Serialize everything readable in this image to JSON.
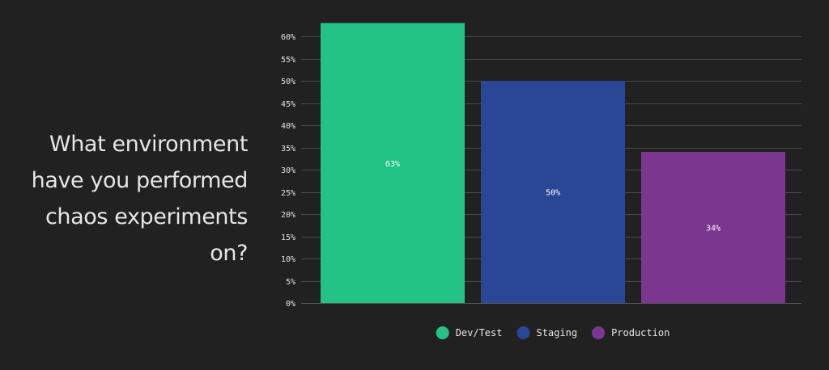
{
  "question": {
    "text": "What environment have you performed chaos experiments on?"
  },
  "chart_data": {
    "type": "bar",
    "categories": [
      "Dev/Test",
      "Staging",
      "Production"
    ],
    "values": [
      63,
      50,
      34
    ],
    "value_unit": "%",
    "data_labels": [
      "63%",
      "50%",
      "34%"
    ],
    "colors": [
      "#23c386",
      "#2a4696",
      "#7b3690"
    ],
    "ylim": [
      0,
      60
    ],
    "ytick_values": [
      0,
      5,
      10,
      15,
      20,
      25,
      30,
      35,
      40,
      45,
      50,
      55,
      60
    ],
    "ytick_labels": [
      "0%",
      "5%",
      "10%",
      "15%",
      "20%",
      "25%",
      "30%",
      "35%",
      "40%",
      "45%",
      "50%",
      "55%",
      "60%"
    ],
    "grid": true,
    "legend_position": "bottom-center",
    "title": "",
    "xlabel": "",
    "ylabel": ""
  }
}
